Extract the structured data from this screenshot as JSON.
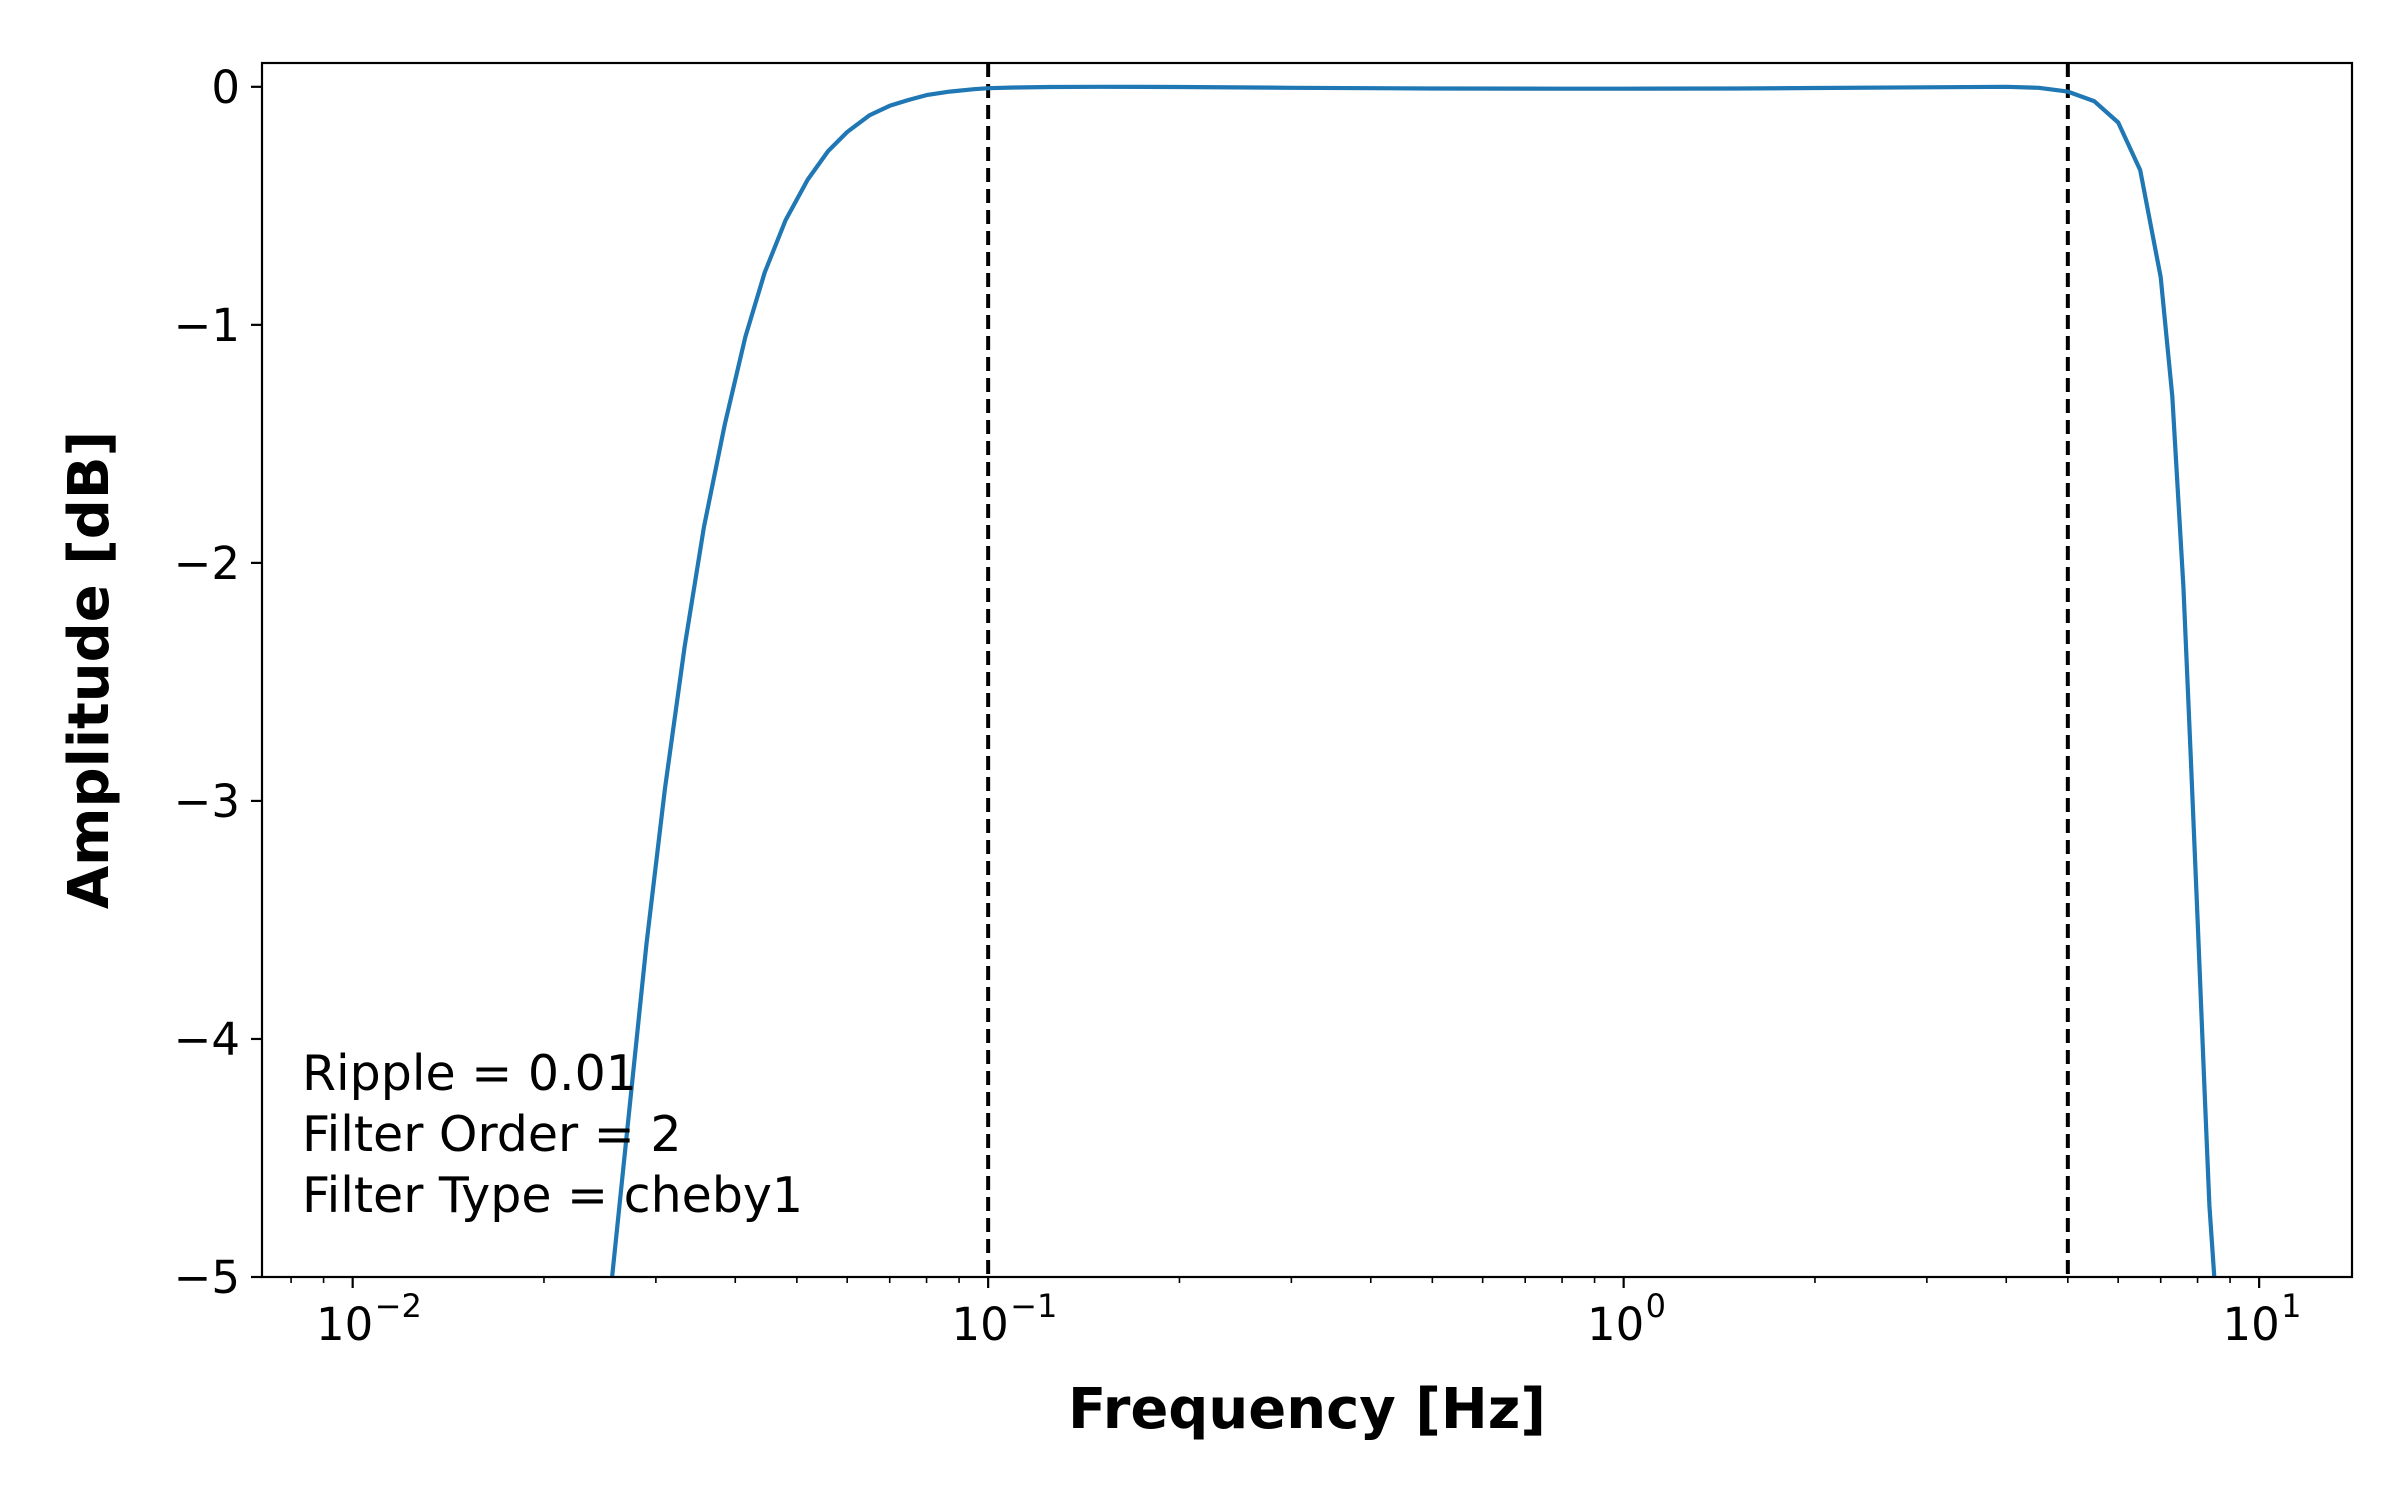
{
  "chart_data": {
    "type": "line",
    "title": "",
    "xlabel": "Frequency [Hz]",
    "ylabel": "Amplitude [dB]",
    "xscale": "log",
    "xlim": [
      0.0072,
      14.0
    ],
    "ylim": [
      -5,
      0.1
    ],
    "grid": false,
    "x_ticks": [
      {
        "base": "10",
        "exp": "−2",
        "value": 0.01
      },
      {
        "base": "10",
        "exp": "−1",
        "value": 0.1
      },
      {
        "base": "10",
        "exp": "0",
        "value": 1
      },
      {
        "base": "10",
        "exp": "1",
        "value": 10
      }
    ],
    "y_ticks": [
      {
        "label": "0",
        "value": 0
      },
      {
        "label": "−1",
        "value": -1
      },
      {
        "label": "−2",
        "value": -2
      },
      {
        "label": "−3",
        "value": -3
      },
      {
        "label": "−4",
        "value": -4
      },
      {
        "label": "−5",
        "value": -5
      }
    ],
    "series": [
      {
        "color": "#1f77b4",
        "x": [
          0.0256,
          0.027,
          0.029,
          0.031,
          0.0333,
          0.0357,
          0.0385,
          0.0415,
          0.0445,
          0.048,
          0.052,
          0.056,
          0.06,
          0.065,
          0.07,
          0.075,
          0.08,
          0.087,
          0.095,
          0.1,
          0.11,
          0.125,
          0.15,
          0.2,
          0.3,
          0.5,
          0.8,
          1.0,
          1.5,
          2.0,
          3.0,
          4.0,
          4.5,
          5.0,
          5.5,
          6.0,
          6.5,
          7.0,
          7.3,
          7.6,
          7.8,
          8.0,
          8.2,
          8.35,
          8.5
        ],
        "y": [
          -5.0,
          -4.4,
          -3.6,
          -2.95,
          -2.35,
          -1.85,
          -1.42,
          -1.05,
          -0.78,
          -0.56,
          -0.39,
          -0.27,
          -0.19,
          -0.12,
          -0.08,
          -0.055,
          -0.035,
          -0.02,
          -0.01,
          -0.006,
          -0.003,
          -0.001,
          0.0,
          -0.001,
          -0.004,
          -0.007,
          -0.008,
          -0.008,
          -0.007,
          -0.005,
          -0.002,
          0.0,
          -0.004,
          -0.02,
          -0.06,
          -0.15,
          -0.35,
          -0.8,
          -1.3,
          -2.1,
          -2.8,
          -3.5,
          -4.2,
          -4.7,
          -5.0
        ]
      }
    ],
    "vlines": [
      {
        "x": 0.1,
        "style": "dashed",
        "color": "#000000"
      },
      {
        "x": 5.0,
        "style": "dashed",
        "color": "#000000"
      }
    ],
    "annotations": [
      "Ripple = 0.01",
      "Filter Order = 2",
      "Filter Type = cheby1"
    ]
  }
}
